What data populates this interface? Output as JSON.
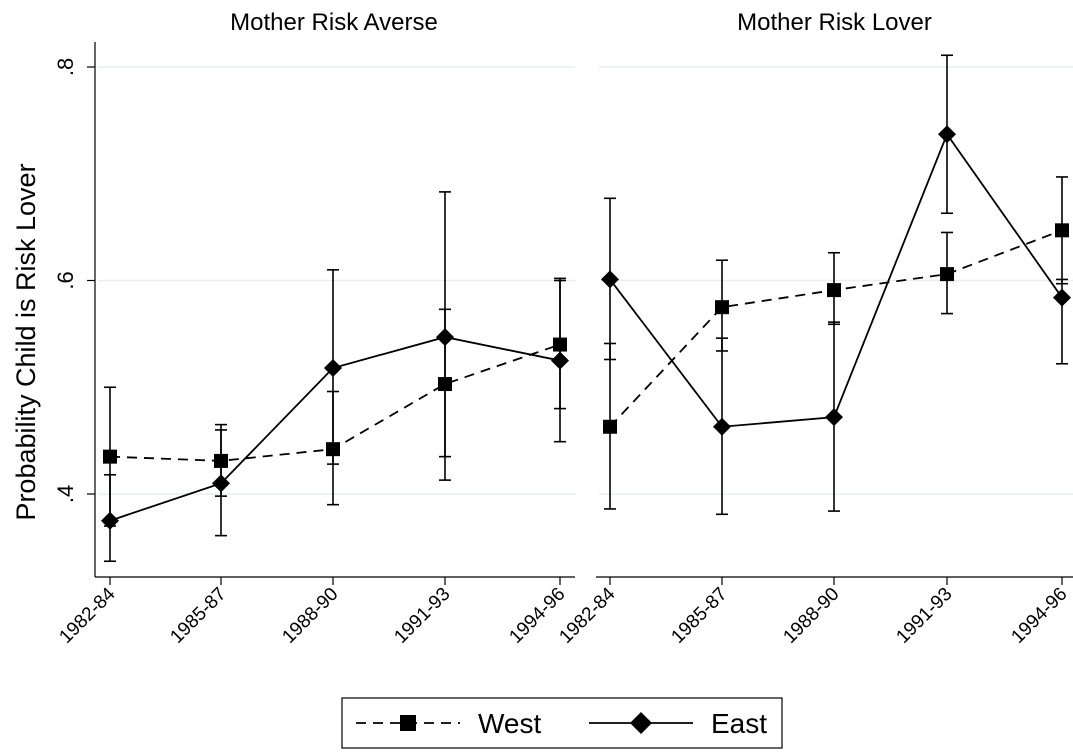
{
  "chart_data": {
    "type": "line",
    "ylabel": "Probability Child is Risk Lover",
    "y_ticks": [
      0.4,
      0.6,
      0.8
    ],
    "y_tick_labels": [
      ".4",
      ".6",
      ".8"
    ],
    "ylim": [
      0.33,
      0.83
    ],
    "categories": [
      "1982-84",
      "1985-87",
      "1988-90",
      "1991-93",
      "1994-96"
    ],
    "grid": true,
    "legend_placement": "bottom-center",
    "legend": [
      {
        "label": "West",
        "marker": "square",
        "line": "dashed"
      },
      {
        "label": "East",
        "marker": "diamond",
        "line": "solid"
      }
    ],
    "panels": [
      {
        "title": "Mother Risk Averse",
        "series": [
          {
            "name": "West",
            "values": [
              0.435,
              0.431,
              0.442,
              0.503,
              0.54
            ],
            "ci_low": [
              0.37,
              0.398,
              0.39,
              0.435,
              0.48
            ],
            "ci_high": [
              0.5,
              0.465,
              0.496,
              0.573,
              0.602
            ]
          },
          {
            "name": "East",
            "values": [
              0.375,
              0.41,
              0.518,
              0.547,
              0.525
            ],
            "ci_low": [
              0.337,
              0.361,
              0.428,
              0.413,
              0.449
            ],
            "ci_high": [
              0.418,
              0.46,
              0.61,
              0.683,
              0.6
            ]
          }
        ]
      },
      {
        "title": "Mother Risk Lover",
        "series": [
          {
            "name": "West",
            "values": [
              0.463,
              0.575,
              0.591,
              0.606,
              0.647
            ],
            "ci_low": [
              0.386,
              0.534,
              0.559,
              0.569,
              0.597
            ],
            "ci_high": [
              0.541,
              0.619,
              0.626,
              0.645,
              0.697
            ]
          },
          {
            "name": "East",
            "values": [
              0.601,
              0.463,
              0.472,
              0.737,
              0.584
            ],
            "ci_low": [
              0.526,
              0.381,
              0.384,
              0.663,
              0.522
            ],
            "ci_high": [
              0.677,
              0.546,
              0.561,
              0.811,
              0.601
            ]
          }
        ]
      }
    ]
  }
}
